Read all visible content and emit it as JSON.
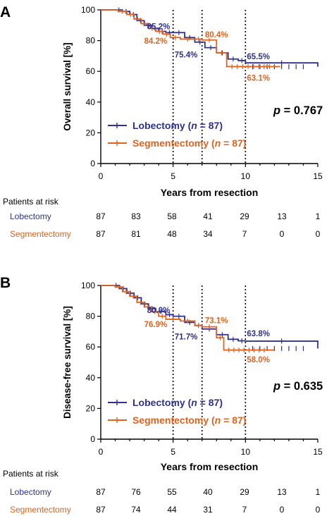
{
  "colors": {
    "lobectomy": "#2E3192",
    "segmentectomy": "#E0631E"
  },
  "chart_data": [
    {
      "type": "line",
      "panel": "A",
      "ylabel": "Overall survival  [%]",
      "xlabel": "Years from resection",
      "xlim": [
        0,
        15
      ],
      "ylim": [
        0,
        100
      ],
      "xticks": [
        "0",
        "5",
        "10",
        "15"
      ],
      "yticks": [
        "0",
        "20",
        "40",
        "60",
        "80",
        "100"
      ],
      "pvalue": "p = 0.767",
      "series": [
        {
          "name": "Lobectomy (n = 87)",
          "name_parts": [
            "Lobectomy (",
            "n",
            " = 87)"
          ],
          "x": [
            0,
            1.0,
            1.5,
            2.0,
            2.5,
            3.0,
            3.5,
            4.0,
            4.5,
            5.0,
            5.8,
            6.5,
            7.2,
            8.0,
            8.8,
            9.5,
            10.0,
            15.0
          ],
          "y": [
            100,
            100,
            99,
            97,
            93,
            90,
            88,
            86,
            85.2,
            85.2,
            82,
            79,
            75.4,
            72,
            68,
            67,
            65.5,
            63
          ]
        },
        {
          "name": "Segmentectomy (n = 87)",
          "name_parts": [
            "Segmentectomy (",
            "n",
            " = 87)"
          ],
          "x": [
            0,
            1.2,
            1.8,
            2.3,
            2.8,
            3.3,
            3.8,
            4.3,
            4.8,
            5.5,
            6.5,
            7.0,
            8.0,
            8.7,
            12.4
          ],
          "y": [
            100,
            99,
            97,
            94,
            91,
            88,
            86,
            84.2,
            82,
            81,
            81,
            80.4,
            72,
            63.1,
            63.1
          ]
        }
      ],
      "annotations": [
        {
          "text": "85.2%",
          "series": "Lobectomy",
          "x": 3.2,
          "y": 87.5
        },
        {
          "text": "84.2%",
          "series": "Segmentectomy",
          "x": 3.0,
          "y": 78
        },
        {
          "text": "75.4%",
          "series": "Lobectomy",
          "x": 5.1,
          "y": 69
        },
        {
          "text": "80.4%",
          "series": "Segmentectomy",
          "x": 7.2,
          "y": 82
        },
        {
          "text": "65.5%",
          "series": "Lobectomy",
          "x": 10.1,
          "y": 68
        },
        {
          "text": "63.1%",
          "series": "Segmentectomy",
          "x": 10.1,
          "y": 54
        }
      ],
      "vlines": [
        5,
        7,
        10
      ],
      "risk_table": {
        "title": "Patients at risk",
        "rows": [
          {
            "label": "Lobectomy",
            "values": [
              "87",
              "83",
              "58",
              "41",
              "29",
              "13",
              "1"
            ]
          },
          {
            "label": "Segmentectomy",
            "values": [
              "87",
              "81",
              "48",
              "34",
              "7",
              "0",
              "0"
            ]
          }
        ]
      }
    },
    {
      "type": "line",
      "panel": "B",
      "ylabel": "Disease-free survival [%]",
      "xlabel": "Years from resection",
      "xlim": [
        0,
        15
      ],
      "ylim": [
        0,
        100
      ],
      "xticks": [
        "0",
        "5",
        "10",
        "15"
      ],
      "yticks": [
        "0",
        "20",
        "40",
        "60",
        "80",
        "100"
      ],
      "pvalue": "p = 0.635",
      "series": [
        {
          "name": "Lobectomy (n = 87)",
          "name_parts": [
            "Lobectomy (",
            "n",
            " = 87)"
          ],
          "x": [
            0,
            0.8,
            1.3,
            1.8,
            2.3,
            2.8,
            3.3,
            3.8,
            4.5,
            5.0,
            5.8,
            6.5,
            7.0,
            8.0,
            8.8,
            9.5,
            10.0,
            15.0
          ],
          "y": [
            100,
            100,
            98,
            95,
            92,
            88,
            85,
            83,
            81,
            80.0,
            76,
            74,
            71.7,
            68,
            65,
            64,
            63.8,
            59
          ]
        },
        {
          "name": "Segmentectomy (n = 87)",
          "name_parts": [
            "Segmentectomy (",
            "n",
            " = 87)"
          ],
          "x": [
            0,
            1.0,
            1.5,
            2.0,
            2.5,
            3.0,
            3.5,
            4.0,
            4.5,
            5.5,
            6.5,
            7.0,
            8.0,
            8.5,
            12.0
          ],
          "y": [
            100,
            99,
            96,
            93,
            89,
            86,
            83,
            80,
            78,
            76.9,
            74,
            73.1,
            66,
            58.0,
            58.0
          ]
        }
      ],
      "annotations": [
        {
          "text": "80.0%",
          "series": "Lobectomy",
          "x": 3.2,
          "y": 82
        },
        {
          "text": "76.9%",
          "series": "Segmentectomy",
          "x": 3.0,
          "y": 73
        },
        {
          "text": "71.7%",
          "series": "Lobectomy",
          "x": 5.1,
          "y": 65
        },
        {
          "text": "73.1%",
          "series": "Segmentectomy",
          "x": 7.2,
          "y": 75.5
        },
        {
          "text": "63.8%",
          "series": "Lobectomy",
          "x": 10.1,
          "y": 67
        },
        {
          "text": "58.0%",
          "series": "Segmentectomy",
          "x": 10.1,
          "y": 50
        }
      ],
      "vlines": [
        5,
        7,
        10
      ],
      "risk_table": {
        "title": "Patients at risk",
        "rows": [
          {
            "label": "Lobectomy",
            "values": [
              "87",
              "76",
              "55",
              "40",
              "29",
              "13",
              "1"
            ]
          },
          {
            "label": "Segmentectomy",
            "values": [
              "87",
              "74",
              "44",
              "31",
              "7",
              "0",
              "0"
            ]
          }
        ]
      }
    }
  ]
}
